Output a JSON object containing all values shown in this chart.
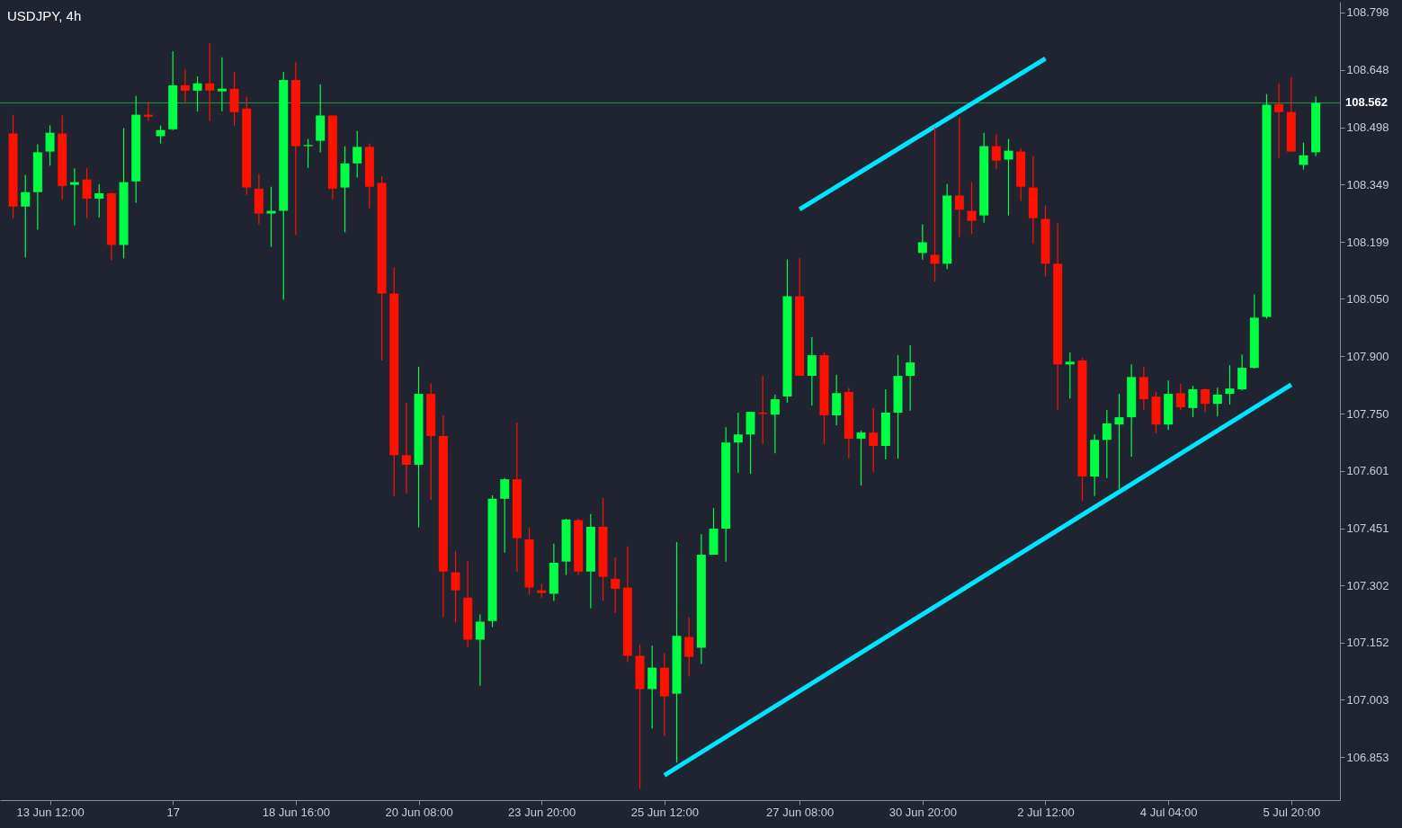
{
  "chart_data": {
    "type": "candlestick",
    "title": "USDJPY, 4h",
    "categories": [
      null,
      null,
      null,
      "13 Jun 12:00",
      null,
      null,
      null,
      null,
      null,
      null,
      null,
      null,
      null,
      "17",
      null,
      null,
      null,
      null,
      null,
      null,
      null,
      null,
      null,
      "18 Jun 16:00",
      null,
      null,
      null,
      null,
      null,
      null,
      null,
      null,
      null,
      "20 Jun 08:00",
      null,
      null,
      null,
      null,
      null,
      null,
      null,
      null,
      null,
      "23 Jun 20:00",
      null,
      null,
      null,
      null,
      null,
      null,
      null,
      null,
      null,
      "25 Jun 12:00",
      null,
      null,
      null,
      null,
      null,
      null,
      null,
      null,
      null,
      null,
      "27 Jun 08:00",
      null,
      null,
      null,
      null,
      null,
      null,
      null,
      null,
      null,
      "30 Jun 20:00",
      null,
      null,
      null,
      null,
      null,
      null,
      null,
      null,
      null,
      "2 Jul 12:00",
      null,
      null,
      null,
      null,
      null,
      null,
      null,
      null,
      null,
      "4 Jul 04:00",
      null,
      null,
      null,
      null,
      null,
      null,
      null,
      null,
      null,
      "5 Jul 20:00",
      null,
      null
    ],
    "ohlc": [
      [
        108.482,
        108.531,
        108.261,
        108.291
      ],
      [
        108.291,
        108.374,
        108.158,
        108.329
      ],
      [
        108.329,
        108.454,
        108.231,
        108.433
      ],
      [
        108.435,
        108.503,
        108.398,
        108.484
      ],
      [
        108.482,
        108.529,
        108.31,
        108.345
      ],
      [
        108.348,
        108.391,
        108.242,
        108.355
      ],
      [
        108.362,
        108.391,
        108.261,
        108.312
      ],
      [
        108.312,
        108.35,
        108.263,
        108.326
      ],
      [
        108.326,
        108.329,
        108.151,
        108.191
      ],
      [
        108.191,
        108.496,
        108.156,
        108.355
      ],
      [
        108.357,
        108.58,
        108.301,
        108.531
      ],
      [
        108.531,
        108.564,
        108.515,
        108.526
      ],
      [
        108.475,
        108.503,
        108.456,
        108.491
      ],
      [
        108.493,
        108.697,
        108.491,
        108.608
      ],
      [
        108.608,
        108.65,
        108.564,
        108.594
      ],
      [
        108.594,
        108.631,
        108.54,
        108.613
      ],
      [
        108.613,
        108.718,
        108.515,
        108.594
      ],
      [
        108.592,
        108.681,
        108.54,
        108.599
      ],
      [
        108.599,
        108.643,
        108.503,
        108.538
      ],
      [
        108.547,
        108.578,
        108.322,
        108.341
      ],
      [
        108.338,
        108.376,
        108.245,
        108.273
      ],
      [
        108.273,
        108.343,
        108.186,
        108.28
      ],
      [
        108.28,
        108.643,
        108.048,
        108.622
      ],
      [
        108.622,
        108.669,
        108.216,
        108.449
      ],
      [
        108.449,
        108.468,
        108.392,
        108.452
      ],
      [
        108.463,
        108.61,
        108.433,
        108.529
      ],
      [
        108.529,
        108.529,
        108.31,
        108.338
      ],
      [
        108.341,
        108.449,
        108.224,
        108.404
      ],
      [
        108.404,
        108.489,
        108.367,
        108.447
      ],
      [
        108.447,
        108.456,
        108.287,
        108.343
      ],
      [
        108.353,
        108.371,
        107.889,
        108.064
      ],
      [
        108.064,
        108.132,
        107.535,
        107.642
      ],
      [
        107.642,
        107.779,
        107.542,
        107.617
      ],
      [
        107.617,
        107.873,
        107.453,
        107.802
      ],
      [
        107.802,
        107.83,
        107.525,
        107.692
      ],
      [
        107.692,
        107.746,
        107.219,
        107.338
      ],
      [
        107.336,
        107.392,
        107.205,
        107.289
      ],
      [
        107.27,
        107.366,
        107.141,
        107.16
      ],
      [
        107.16,
        107.226,
        107.04,
        107.207
      ],
      [
        107.209,
        107.537,
        107.193,
        107.528
      ],
      [
        107.528,
        107.582,
        107.387,
        107.579
      ],
      [
        107.579,
        107.727,
        107.338,
        107.425
      ],
      [
        107.422,
        107.453,
        107.277,
        107.296
      ],
      [
        107.289,
        107.306,
        107.27,
        107.282
      ],
      [
        107.28,
        107.411,
        107.261,
        107.361
      ],
      [
        107.364,
        107.476,
        107.329,
        107.474
      ],
      [
        107.472,
        107.476,
        107.329,
        107.338
      ],
      [
        107.338,
        107.488,
        107.242,
        107.455
      ],
      [
        107.455,
        107.53,
        107.261,
        107.324
      ],
      [
        107.319,
        107.375,
        107.23,
        107.293
      ],
      [
        107.296,
        107.404,
        107.102,
        107.118
      ],
      [
        107.118,
        107.148,
        106.771,
        107.031
      ],
      [
        107.031,
        107.144,
        106.928,
        107.087
      ],
      [
        107.087,
        107.125,
        106.909,
        107.012
      ],
      [
        107.019,
        107.415,
        106.839,
        107.17
      ],
      [
        107.167,
        107.219,
        107.064,
        107.115
      ],
      [
        107.139,
        107.436,
        107.097,
        107.382
      ],
      [
        107.382,
        107.504,
        107.382,
        107.45
      ],
      [
        107.45,
        107.715,
        107.364,
        107.675
      ],
      [
        107.675,
        107.753,
        107.596,
        107.696
      ],
      [
        107.696,
        107.755,
        107.593,
        107.755
      ],
      [
        107.753,
        107.849,
        107.671,
        107.75
      ],
      [
        107.748,
        107.8,
        107.647,
        107.788
      ],
      [
        107.795,
        108.153,
        107.779,
        108.057
      ],
      [
        108.057,
        108.156,
        107.849,
        107.849
      ],
      [
        107.849,
        107.95,
        107.772,
        107.903
      ],
      [
        107.903,
        107.91,
        107.671,
        107.746
      ],
      [
        107.746,
        107.852,
        107.72,
        107.804
      ],
      [
        107.807,
        107.818,
        107.633,
        107.685
      ],
      [
        107.685,
        107.706,
        107.563,
        107.701
      ],
      [
        107.701,
        107.765,
        107.598,
        107.666
      ],
      [
        107.666,
        107.814,
        107.631,
        107.753
      ],
      [
        107.753,
        107.903,
        107.633,
        107.849
      ],
      [
        107.849,
        107.929,
        107.758,
        107.884
      ],
      [
        108.17,
        108.245,
        108.153,
        108.198
      ],
      [
        108.165,
        108.498,
        108.095,
        108.142
      ],
      [
        108.142,
        108.35,
        108.128,
        108.32
      ],
      [
        108.32,
        108.524,
        108.212,
        108.283
      ],
      [
        108.28,
        108.355,
        108.219,
        108.254
      ],
      [
        108.268,
        108.484,
        108.249,
        108.449
      ],
      [
        108.449,
        108.479,
        108.388,
        108.411
      ],
      [
        108.414,
        108.468,
        108.268,
        108.437
      ],
      [
        108.435,
        108.444,
        108.306,
        108.343
      ],
      [
        108.341,
        108.423,
        108.194,
        108.261
      ],
      [
        108.259,
        108.294,
        108.109,
        108.142
      ],
      [
        108.142,
        108.247,
        107.76,
        107.879
      ],
      [
        107.879,
        107.91,
        107.79,
        107.886
      ],
      [
        107.889,
        107.896,
        107.523,
        107.586
      ],
      [
        107.586,
        107.696,
        107.535,
        107.682
      ],
      [
        107.682,
        107.76,
        107.582,
        107.725
      ],
      [
        107.722,
        107.802,
        107.554,
        107.741
      ],
      [
        107.741,
        107.879,
        107.638,
        107.846
      ],
      [
        107.846,
        107.873,
        107.76,
        107.788
      ],
      [
        107.795,
        107.807,
        107.699,
        107.722
      ],
      [
        107.722,
        107.837,
        107.708,
        107.802
      ],
      [
        107.804,
        107.828,
        107.76,
        107.767
      ],
      [
        107.765,
        107.823,
        107.741,
        107.814
      ],
      [
        107.814,
        107.816,
        107.755,
        107.776
      ],
      [
        107.776,
        107.818,
        107.743,
        107.8
      ],
      [
        107.802,
        107.877,
        107.774,
        107.816
      ],
      [
        107.814,
        107.905,
        107.811,
        107.87
      ],
      [
        107.87,
        108.062,
        107.868,
        108.001
      ],
      [
        108.003,
        108.585,
        107.998,
        108.557
      ],
      [
        108.559,
        108.613,
        108.418,
        108.538
      ],
      [
        108.538,
        108.629,
        108.435,
        108.435
      ],
      [
        108.4,
        108.458,
        108.388,
        108.425
      ],
      [
        108.433,
        108.578,
        108.423,
        108.562
      ]
    ],
    "colors": [
      "#ff1100",
      "#00ff44",
      "#00ff44",
      "#00ff44",
      "#ff1100",
      "#00ff44",
      "#ff1100",
      "#00ff44",
      "#ff1100",
      "#00ff44",
      "#00ff44",
      "#ff1100",
      "#00ff44",
      "#00ff44",
      "#ff1100",
      "#00ff44",
      "#ff1100",
      "#00ff44",
      "#ff1100",
      "#ff1100",
      "#ff1100",
      "#00ff44",
      "#00ff44",
      "#ff1100",
      "#00ff44",
      "#00ff44",
      "#ff1100",
      "#00ff44",
      "#00ff44",
      "#ff1100",
      "#ff1100",
      "#ff1100",
      "#ff1100",
      "#00ff44",
      "#ff1100",
      "#ff1100",
      "#ff1100",
      "#ff1100",
      "#00ff44",
      "#00ff44",
      "#00ff44",
      "#ff1100",
      "#ff1100",
      "#ff1100",
      "#00ff44",
      "#00ff44",
      "#ff1100",
      "#00ff44",
      "#ff1100",
      "#ff1100",
      "#ff1100",
      "#ff1100",
      "#00ff44",
      "#ff1100",
      "#00ff44",
      "#ff1100",
      "#00ff44",
      "#00ff44",
      "#00ff44",
      "#00ff44",
      "#00ff44",
      "#ff1100",
      "#00ff44",
      "#00ff44",
      "#ff1100",
      "#00ff44",
      "#ff1100",
      "#00ff44",
      "#ff1100",
      "#00ff44",
      "#ff1100",
      "#00ff44",
      "#00ff44",
      "#00ff44",
      "#00ff44",
      "#ff1100",
      "#00ff44",
      "#ff1100",
      "#ff1100",
      "#00ff44",
      "#ff1100",
      "#00ff44",
      "#ff1100",
      "#ff1100",
      "#ff1100",
      "#ff1100",
      "#00ff44",
      "#ff1100",
      "#00ff44",
      "#00ff44",
      "#00ff44",
      "#00ff44",
      "#ff1100",
      "#ff1100",
      "#00ff44",
      "#ff1100",
      "#00ff44",
      "#ff1100",
      "#00ff44",
      "#00ff44",
      "#00ff44",
      "#00ff44",
      "#00ff44",
      "#ff1100",
      "#ff1100",
      "#00ff44",
      "#00ff44"
    ],
    "series": [
      {
        "type": "line",
        "color": "#00e5ff",
        "x": [
          "27 Jun 08:00",
          "2 Jul 12:00"
        ],
        "values": [
          108.284,
          108.678
        ]
      },
      {
        "type": "line",
        "color": "#00e5ff",
        "x": [
          "25 Jun 12:00",
          "5 Jul 20:00"
        ],
        "values": [
          106.806,
          107.826
        ]
      }
    ],
    "ref_lines": [
      {
        "axis": "y",
        "value": 108.562,
        "label": "108.562",
        "color": "#1e9e3e"
      }
    ],
    "ylim": [
      106.741,
      108.826
    ],
    "yticks": [
      106.853,
      107.003,
      107.152,
      107.302,
      107.451,
      107.601,
      {
        "value": 107.75,
        "label": "107.750"
      },
      {
        "value": 107.9,
        "label": "107.900"
      },
      {
        "value": 108.05,
        "label": "108.050"
      },
      108.199,
      108.349,
      108.498,
      108.648,
      108.798
    ]
  }
}
